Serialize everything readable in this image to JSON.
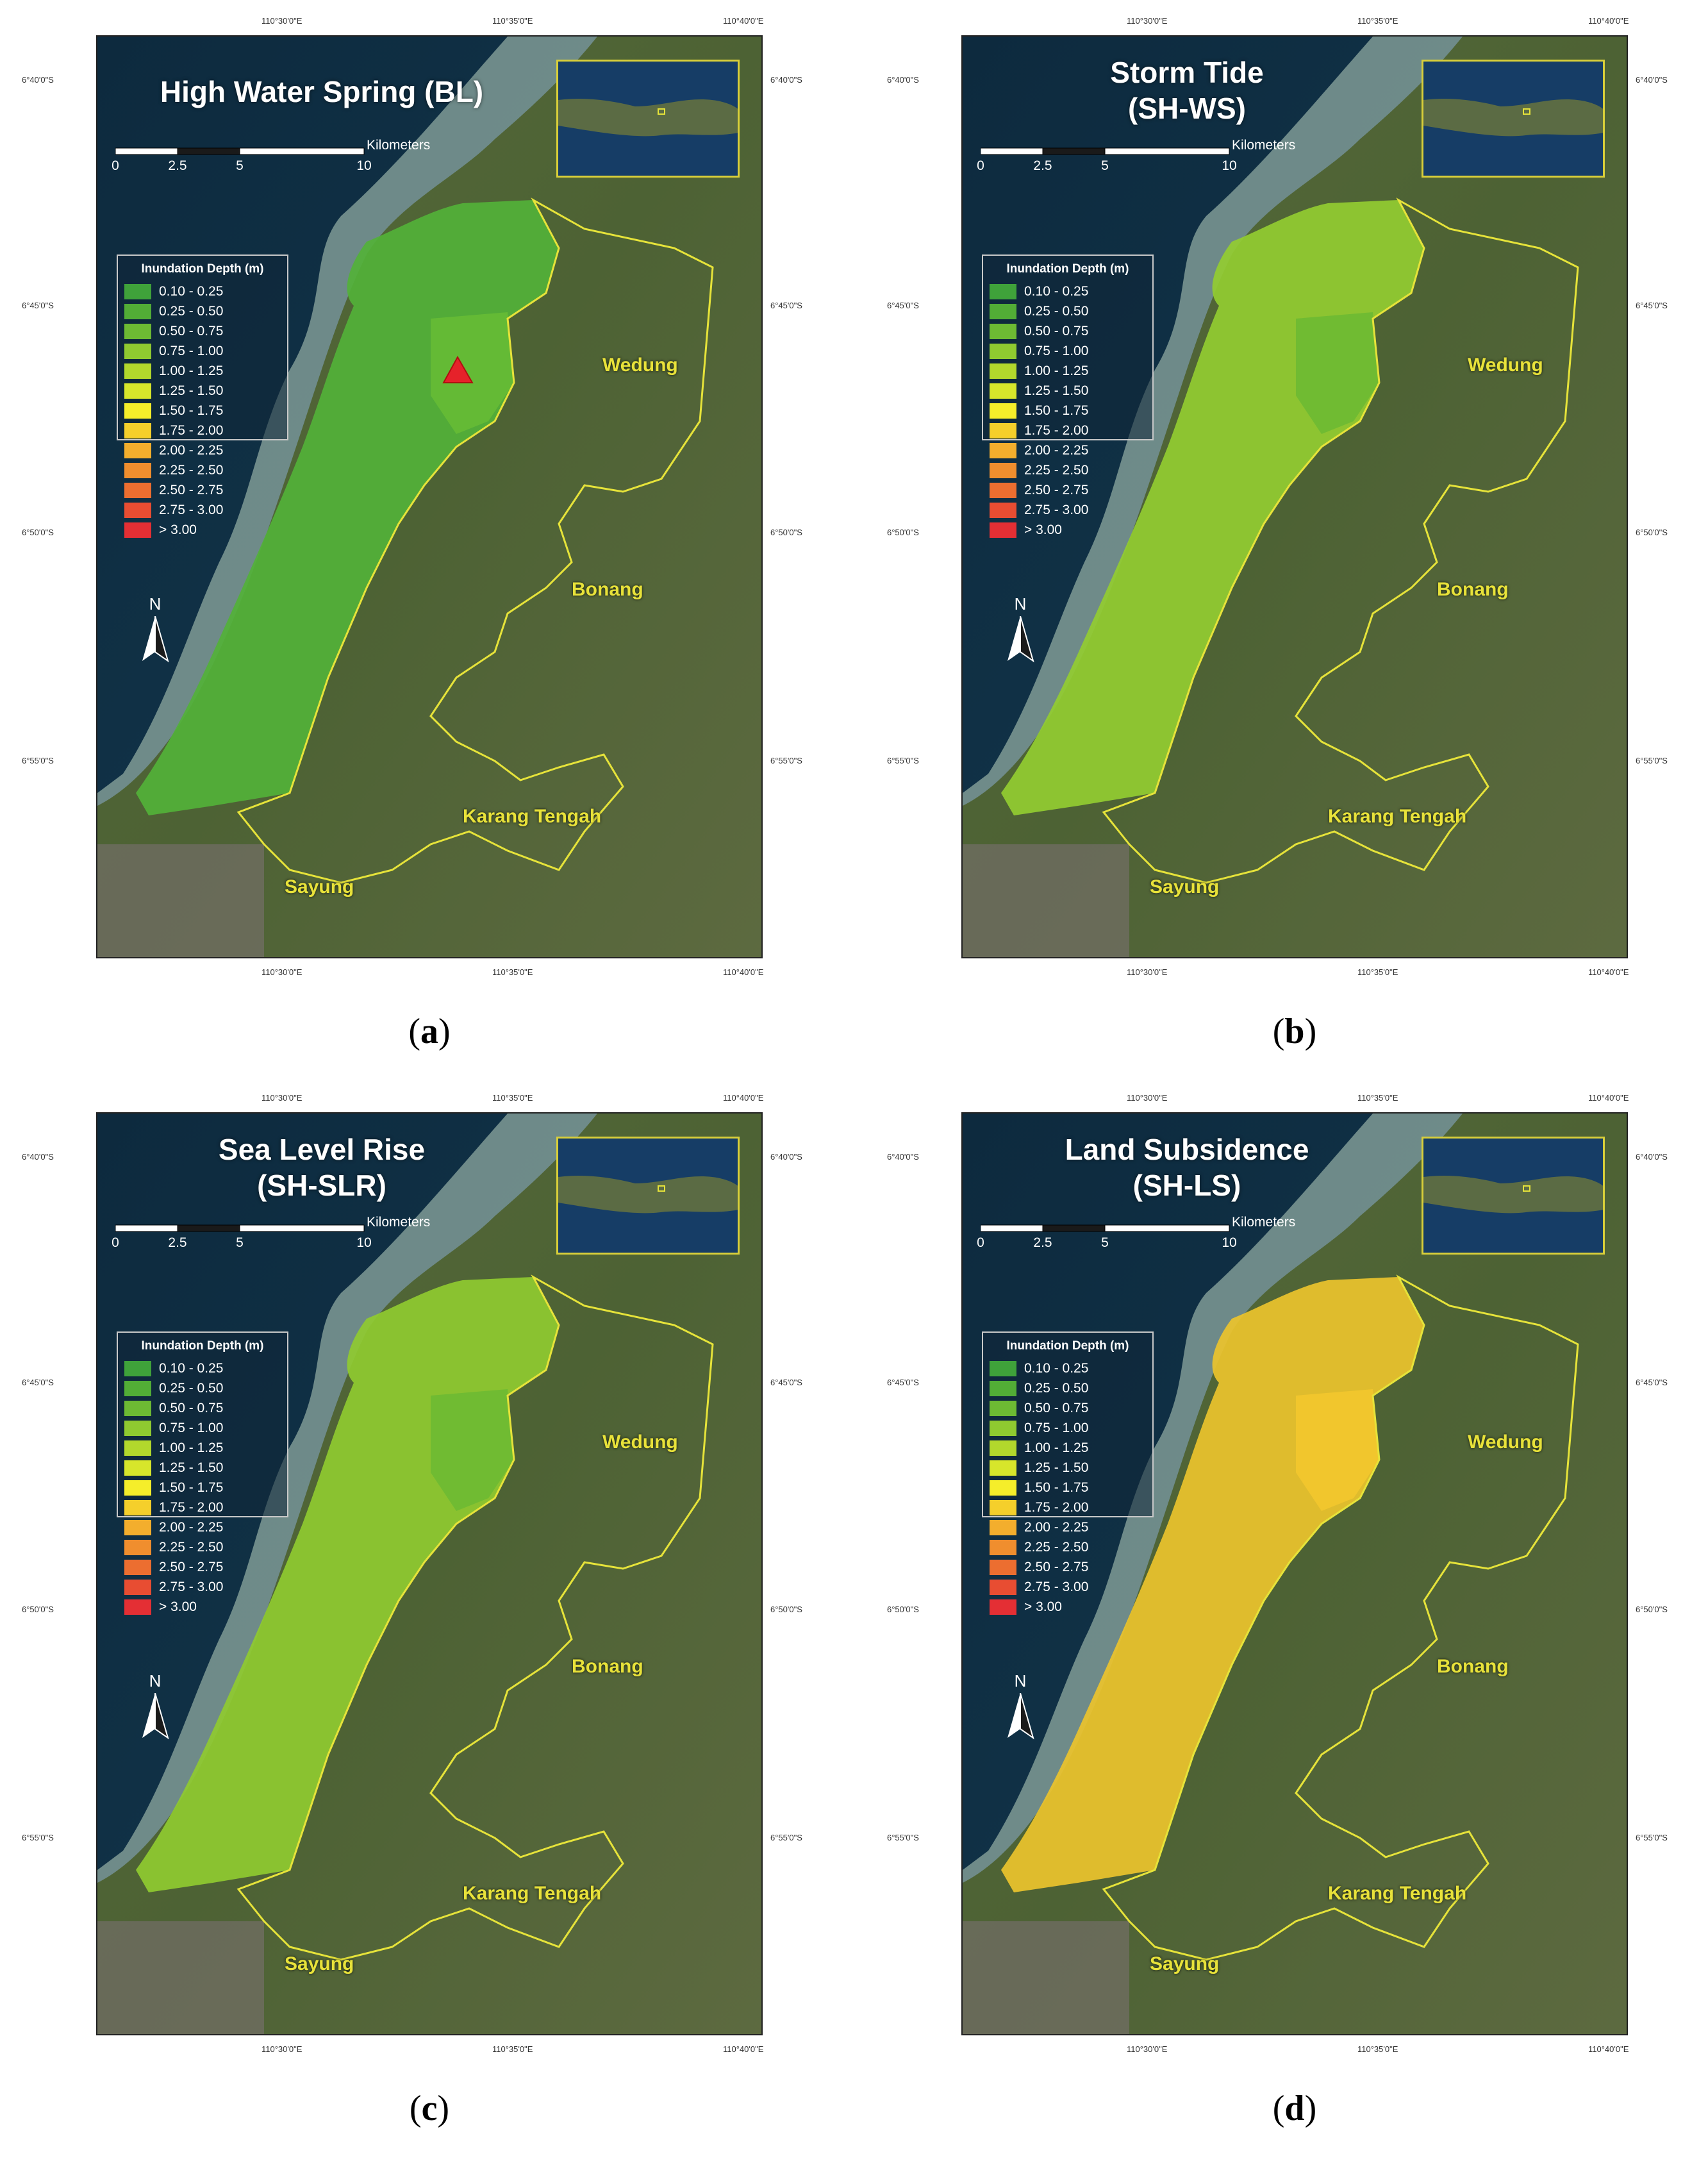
{
  "ticks": {
    "lon": [
      "110°30'0\"E",
      "110°35'0\"E",
      "110°40'0\"E"
    ],
    "lat": [
      "6°40'0\"S",
      "6°45'0\"S",
      "6°50'0\"S",
      "6°55'0\"S"
    ]
  },
  "scale": {
    "numbers": [
      "0",
      "2.5",
      "5",
      "10"
    ],
    "unit": "Kilometers"
  },
  "north": "N",
  "legend": {
    "title": "Inundation Depth (m)",
    "classes": [
      {
        "label": "0.10 - 0.25",
        "color": "#3fa23a"
      },
      {
        "label": "0.25 - 0.50",
        "color": "#52ad36"
      },
      {
        "label": "0.50 - 0.75",
        "color": "#6dba33"
      },
      {
        "label": "0.75 - 1.00",
        "color": "#8fca30"
      },
      {
        "label": "1.00 - 1.25",
        "color": "#b2d82c"
      },
      {
        "label": "1.25 - 1.50",
        "color": "#d7e62b"
      },
      {
        "label": "1.50 - 1.75",
        "color": "#f5ee2a"
      },
      {
        "label": "1.75 - 2.00",
        "color": "#f5cf2b"
      },
      {
        "label": "2.00 - 2.25",
        "color": "#f3ae2d"
      },
      {
        "label": "2.25 - 2.50",
        "color": "#f08e2e"
      },
      {
        "label": "2.50 - 2.75",
        "color": "#ec6e30"
      },
      {
        "label": "2.75 - 3.00",
        "color": "#e84d32"
      },
      {
        "label": "> 3.00",
        "color": "#e42f34"
      }
    ]
  },
  "districts": [
    "Wedung",
    "Bonang",
    "Karang Tengah",
    "Sayung"
  ],
  "panels": [
    {
      "id": "a",
      "title_line1": "High Water Spring (BL)",
      "title_line2": "",
      "caption": "a",
      "fill": "#53b138",
      "fill_inner": "#66bb35",
      "marker": true
    },
    {
      "id": "b",
      "title_line1": "Storm Tide",
      "title_line2": "(SH-WS)",
      "caption": "b",
      "fill": "#92cc31",
      "fill_inner": "#6dba33",
      "marker": false
    },
    {
      "id": "c",
      "title_line1": "Sea Level Rise",
      "title_line2": "(SH-SLR)",
      "caption": "c",
      "fill": "#8fca30",
      "fill_inner": "#6dba33",
      "marker": false
    },
    {
      "id": "d",
      "title_line1": "Land Subsidence",
      "title_line2": "(SH-LS)",
      "caption": "d",
      "fill": "#ecc32c",
      "fill_inner": "#f3c62d",
      "marker": false
    }
  ]
}
